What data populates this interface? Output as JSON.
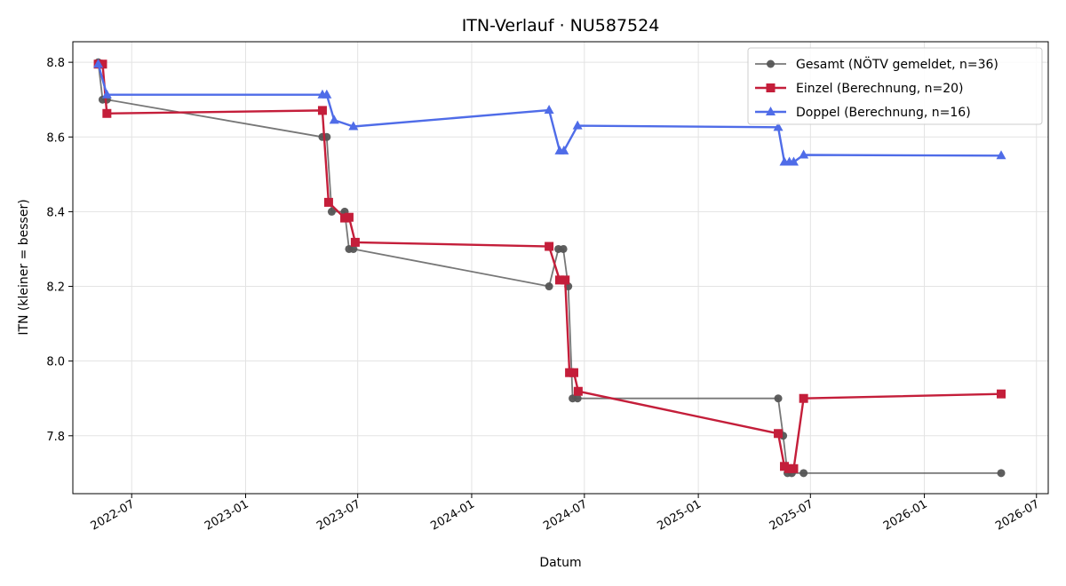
{
  "chart_data": {
    "type": "line",
    "title": "ITN-Verlauf · NU587524",
    "xlabel": "Datum",
    "ylabel": "ITN  (kleiner = besser)",
    "x_type": "date",
    "xlim": [
      "2022-03-28",
      "2026-07-20"
    ],
    "ylim": [
      7.645,
      8.855
    ],
    "y_ticks": [
      7.8,
      8.0,
      8.2,
      8.4,
      8.6,
      8.8
    ],
    "y_tick_labels": [
      "7.8",
      "8.0",
      "8.2",
      "8.4",
      "8.6",
      "8.8"
    ],
    "x_ticks": [
      "2022-07-01",
      "2023-01-01",
      "2023-07-01",
      "2024-01-01",
      "2024-07-01",
      "2025-01-01",
      "2025-07-01",
      "2026-01-01",
      "2026-07-01"
    ],
    "x_tick_labels": [
      "2022-07",
      "2023-01",
      "2023-07",
      "2024-01",
      "2024-07",
      "2025-01",
      "2025-07",
      "2026-01",
      "2026-07"
    ],
    "grid": true,
    "legend_position": "top-right",
    "series": [
      {
        "name": "Gesamt (NÖTV gemeldet, n=36)",
        "color": "#555555",
        "marker": "circle",
        "points": [
          [
            "2022-05-08",
            8.8
          ],
          [
            "2022-05-15",
            8.7
          ],
          [
            "2022-05-22",
            8.7
          ],
          [
            "2023-05-05",
            8.6
          ],
          [
            "2023-05-12",
            8.6
          ],
          [
            "2023-05-20",
            8.4
          ],
          [
            "2023-06-10",
            8.4
          ],
          [
            "2023-06-17",
            8.3
          ],
          [
            "2023-06-24",
            8.3
          ],
          [
            "2024-05-05",
            8.2
          ],
          [
            "2024-05-20",
            8.3
          ],
          [
            "2024-05-28",
            8.3
          ],
          [
            "2024-06-05",
            8.2
          ],
          [
            "2024-06-12",
            7.9
          ],
          [
            "2024-06-20",
            7.9
          ],
          [
            "2025-05-10",
            7.9
          ],
          [
            "2025-05-18",
            7.8
          ],
          [
            "2025-05-25",
            7.7
          ],
          [
            "2025-06-01",
            7.7
          ],
          [
            "2025-06-20",
            7.7
          ],
          [
            "2026-05-05",
            7.7
          ]
        ]
      },
      {
        "name": "Einzel (Berechnung, n=20)",
        "color": "#c41e3a",
        "marker": "square",
        "points": [
          [
            "2022-05-08",
            8.795
          ],
          [
            "2022-05-15",
            8.795
          ],
          [
            "2022-05-22",
            8.663
          ],
          [
            "2023-05-05",
            8.671
          ],
          [
            "2023-05-15",
            8.425
          ],
          [
            "2023-06-10",
            8.383
          ],
          [
            "2023-06-17",
            8.385
          ],
          [
            "2023-06-27",
            8.318
          ],
          [
            "2024-05-05",
            8.307
          ],
          [
            "2024-05-22",
            8.217
          ],
          [
            "2024-05-31",
            8.217
          ],
          [
            "2024-06-07",
            7.969
          ],
          [
            "2024-06-14",
            7.969
          ],
          [
            "2024-06-21",
            7.919
          ],
          [
            "2025-05-10",
            7.806
          ],
          [
            "2025-05-20",
            7.718
          ],
          [
            "2025-05-27",
            7.712
          ],
          [
            "2025-06-04",
            7.712
          ],
          [
            "2025-06-20",
            7.9
          ],
          [
            "2026-05-05",
            7.912
          ]
        ]
      },
      {
        "name": "Doppel (Berechnung, n=16)",
        "color": "#4f6ce8",
        "marker": "triangle",
        "points": [
          [
            "2022-05-08",
            8.795
          ],
          [
            "2022-05-22",
            8.713
          ],
          [
            "2023-05-05",
            8.713
          ],
          [
            "2023-05-12",
            8.713
          ],
          [
            "2023-05-24",
            8.645
          ],
          [
            "2023-06-24",
            8.628
          ],
          [
            "2024-05-05",
            8.672
          ],
          [
            "2024-05-22",
            8.563
          ],
          [
            "2024-05-29",
            8.563
          ],
          [
            "2024-06-20",
            8.63
          ],
          [
            "2025-05-10",
            8.626
          ],
          [
            "2025-05-20",
            8.533
          ],
          [
            "2025-05-28",
            8.533
          ],
          [
            "2025-06-04",
            8.533
          ],
          [
            "2025-06-20",
            8.552
          ],
          [
            "2026-05-05",
            8.55
          ]
        ]
      }
    ]
  }
}
